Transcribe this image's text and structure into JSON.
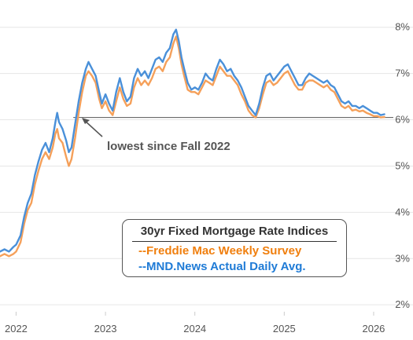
{
  "chart_data": {
    "type": "line",
    "legend_title": "30yr Fixed Mortgage Rate Indices",
    "legend_position": "bottom-right",
    "annotation": {
      "text": "lowest since Fall 2022",
      "y": 6.05
    },
    "x_ticks": [
      {
        "label": "2022",
        "x": 2022
      },
      {
        "label": "2023",
        "x": 2023
      },
      {
        "label": "2024",
        "x": 2024
      },
      {
        "label": "2025",
        "x": 2025
      },
      {
        "label": "2026",
        "x": 2026
      }
    ],
    "y_ticks": [
      {
        "label": "2%",
        "y": 2
      },
      {
        "label": "3%",
        "y": 3
      },
      {
        "label": "4%",
        "y": 4
      },
      {
        "label": "5%",
        "y": 5
      },
      {
        "label": "6%",
        "y": 6
      },
      {
        "label": "7%",
        "y": 7
      },
      {
        "label": "8%",
        "y": 8
      }
    ],
    "xlim": [
      2021.82,
      2026.15
    ],
    "ylim": [
      1.85,
      8.25
    ],
    "grid": "horizontal",
    "series": [
      {
        "name": "--MND.News Actual Daily Avg.",
        "color": "#4A90D9",
        "points": [
          [
            2021.82,
            3.15
          ],
          [
            2021.87,
            3.2
          ],
          [
            2021.92,
            3.15
          ],
          [
            2021.97,
            3.25
          ],
          [
            2022.0,
            3.3
          ],
          [
            2022.05,
            3.5
          ],
          [
            2022.09,
            3.9
          ],
          [
            2022.13,
            4.2
          ],
          [
            2022.17,
            4.4
          ],
          [
            2022.21,
            4.8
          ],
          [
            2022.25,
            5.1
          ],
          [
            2022.29,
            5.35
          ],
          [
            2022.33,
            5.5
          ],
          [
            2022.37,
            5.3
          ],
          [
            2022.41,
            5.6
          ],
          [
            2022.44,
            5.95
          ],
          [
            2022.46,
            6.15
          ],
          [
            2022.48,
            5.95
          ],
          [
            2022.52,
            5.8
          ],
          [
            2022.56,
            5.55
          ],
          [
            2022.59,
            5.3
          ],
          [
            2022.62,
            5.4
          ],
          [
            2022.66,
            5.9
          ],
          [
            2022.7,
            6.4
          ],
          [
            2022.74,
            6.8
          ],
          [
            2022.78,
            7.1
          ],
          [
            2022.81,
            7.25
          ],
          [
            2022.85,
            7.1
          ],
          [
            2022.89,
            6.95
          ],
          [
            2022.93,
            6.6
          ],
          [
            2022.96,
            6.35
          ],
          [
            2023.0,
            6.55
          ],
          [
            2023.04,
            6.35
          ],
          [
            2023.08,
            6.2
          ],
          [
            2023.12,
            6.6
          ],
          [
            2023.16,
            6.9
          ],
          [
            2023.2,
            6.6
          ],
          [
            2023.24,
            6.4
          ],
          [
            2023.28,
            6.5
          ],
          [
            2023.32,
            6.9
          ],
          [
            2023.36,
            7.1
          ],
          [
            2023.4,
            6.95
          ],
          [
            2023.44,
            7.05
          ],
          [
            2023.48,
            6.9
          ],
          [
            2023.52,
            7.1
          ],
          [
            2023.56,
            7.3
          ],
          [
            2023.6,
            7.35
          ],
          [
            2023.64,
            7.25
          ],
          [
            2023.68,
            7.45
          ],
          [
            2023.72,
            7.55
          ],
          [
            2023.76,
            7.85
          ],
          [
            2023.79,
            7.95
          ],
          [
            2023.82,
            7.7
          ],
          [
            2023.85,
            7.35
          ],
          [
            2023.88,
            7.1
          ],
          [
            2023.92,
            6.8
          ],
          [
            2023.96,
            6.65
          ],
          [
            2024.0,
            6.7
          ],
          [
            2024.04,
            6.65
          ],
          [
            2024.08,
            6.8
          ],
          [
            2024.12,
            7.0
          ],
          [
            2024.16,
            6.9
          ],
          [
            2024.2,
            6.85
          ],
          [
            2024.24,
            7.1
          ],
          [
            2024.28,
            7.3
          ],
          [
            2024.32,
            7.2
          ],
          [
            2024.36,
            7.05
          ],
          [
            2024.4,
            7.1
          ],
          [
            2024.44,
            6.95
          ],
          [
            2024.48,
            6.85
          ],
          [
            2024.52,
            6.7
          ],
          [
            2024.56,
            6.5
          ],
          [
            2024.6,
            6.3
          ],
          [
            2024.64,
            6.2
          ],
          [
            2024.68,
            6.1
          ],
          [
            2024.72,
            6.35
          ],
          [
            2024.76,
            6.7
          ],
          [
            2024.8,
            6.95
          ],
          [
            2024.84,
            7.0
          ],
          [
            2024.88,
            6.85
          ],
          [
            2024.92,
            6.95
          ],
          [
            2024.96,
            7.05
          ],
          [
            2025.0,
            7.15
          ],
          [
            2025.04,
            7.2
          ],
          [
            2025.08,
            7.05
          ],
          [
            2025.12,
            6.9
          ],
          [
            2025.16,
            6.75
          ],
          [
            2025.2,
            6.75
          ],
          [
            2025.24,
            6.9
          ],
          [
            2025.28,
            7.0
          ],
          [
            2025.32,
            6.95
          ],
          [
            2025.36,
            6.9
          ],
          [
            2025.4,
            6.85
          ],
          [
            2025.44,
            6.8
          ],
          [
            2025.48,
            6.85
          ],
          [
            2025.52,
            6.75
          ],
          [
            2025.56,
            6.7
          ],
          [
            2025.6,
            6.55
          ],
          [
            2025.64,
            6.4
          ],
          [
            2025.68,
            6.35
          ],
          [
            2025.72,
            6.4
          ],
          [
            2025.76,
            6.3
          ],
          [
            2025.8,
            6.3
          ],
          [
            2025.84,
            6.25
          ],
          [
            2025.88,
            6.3
          ],
          [
            2025.92,
            6.25
          ],
          [
            2025.96,
            6.2
          ],
          [
            2026.0,
            6.15
          ],
          [
            2026.04,
            6.15
          ],
          [
            2026.08,
            6.1
          ],
          [
            2026.12,
            6.12
          ]
        ]
      },
      {
        "name": "--Freddie Mac Weekly Survey",
        "color": "#F5A05A",
        "points": [
          [
            2021.82,
            3.05
          ],
          [
            2021.87,
            3.1
          ],
          [
            2021.92,
            3.05
          ],
          [
            2021.97,
            3.1
          ],
          [
            2022.0,
            3.15
          ],
          [
            2022.05,
            3.35
          ],
          [
            2022.09,
            3.75
          ],
          [
            2022.13,
            4.05
          ],
          [
            2022.17,
            4.2
          ],
          [
            2022.21,
            4.6
          ],
          [
            2022.25,
            4.9
          ],
          [
            2022.29,
            5.15
          ],
          [
            2022.33,
            5.3
          ],
          [
            2022.37,
            5.15
          ],
          [
            2022.41,
            5.4
          ],
          [
            2022.44,
            5.7
          ],
          [
            2022.46,
            5.8
          ],
          [
            2022.48,
            5.6
          ],
          [
            2022.52,
            5.5
          ],
          [
            2022.56,
            5.2
          ],
          [
            2022.59,
            5.0
          ],
          [
            2022.62,
            5.15
          ],
          [
            2022.66,
            5.6
          ],
          [
            2022.7,
            6.15
          ],
          [
            2022.74,
            6.6
          ],
          [
            2022.78,
            6.95
          ],
          [
            2022.81,
            7.05
          ],
          [
            2022.85,
            6.95
          ],
          [
            2022.89,
            6.8
          ],
          [
            2022.93,
            6.45
          ],
          [
            2022.96,
            6.25
          ],
          [
            2023.0,
            6.4
          ],
          [
            2023.04,
            6.2
          ],
          [
            2023.08,
            6.1
          ],
          [
            2023.12,
            6.4
          ],
          [
            2023.16,
            6.7
          ],
          [
            2023.2,
            6.45
          ],
          [
            2023.24,
            6.3
          ],
          [
            2023.28,
            6.35
          ],
          [
            2023.32,
            6.7
          ],
          [
            2023.36,
            6.9
          ],
          [
            2023.4,
            6.75
          ],
          [
            2023.44,
            6.85
          ],
          [
            2023.48,
            6.75
          ],
          [
            2023.52,
            6.9
          ],
          [
            2023.56,
            7.1
          ],
          [
            2023.6,
            7.15
          ],
          [
            2023.64,
            7.05
          ],
          [
            2023.68,
            7.25
          ],
          [
            2023.72,
            7.35
          ],
          [
            2023.76,
            7.65
          ],
          [
            2023.79,
            7.8
          ],
          [
            2023.82,
            7.55
          ],
          [
            2023.85,
            7.2
          ],
          [
            2023.88,
            6.95
          ],
          [
            2023.92,
            6.65
          ],
          [
            2023.96,
            6.6
          ],
          [
            2024.0,
            6.6
          ],
          [
            2024.04,
            6.55
          ],
          [
            2024.08,
            6.7
          ],
          [
            2024.12,
            6.85
          ],
          [
            2024.16,
            6.8
          ],
          [
            2024.2,
            6.75
          ],
          [
            2024.24,
            6.95
          ],
          [
            2024.28,
            7.15
          ],
          [
            2024.32,
            7.05
          ],
          [
            2024.36,
            6.95
          ],
          [
            2024.4,
            6.95
          ],
          [
            2024.44,
            6.85
          ],
          [
            2024.48,
            6.75
          ],
          [
            2024.52,
            6.55
          ],
          [
            2024.56,
            6.4
          ],
          [
            2024.6,
            6.2
          ],
          [
            2024.64,
            6.1
          ],
          [
            2024.68,
            6.05
          ],
          [
            2024.72,
            6.25
          ],
          [
            2024.76,
            6.55
          ],
          [
            2024.8,
            6.8
          ],
          [
            2024.84,
            6.85
          ],
          [
            2024.88,
            6.75
          ],
          [
            2024.92,
            6.8
          ],
          [
            2024.96,
            6.9
          ],
          [
            2025.0,
            7.0
          ],
          [
            2025.04,
            7.05
          ],
          [
            2025.08,
            6.9
          ],
          [
            2025.12,
            6.75
          ],
          [
            2025.16,
            6.65
          ],
          [
            2025.2,
            6.65
          ],
          [
            2025.24,
            6.8
          ],
          [
            2025.28,
            6.85
          ],
          [
            2025.32,
            6.85
          ],
          [
            2025.36,
            6.8
          ],
          [
            2025.4,
            6.75
          ],
          [
            2025.44,
            6.7
          ],
          [
            2025.48,
            6.75
          ],
          [
            2025.52,
            6.65
          ],
          [
            2025.56,
            6.6
          ],
          [
            2025.6,
            6.45
          ],
          [
            2025.64,
            6.3
          ],
          [
            2025.68,
            6.25
          ],
          [
            2025.72,
            6.3
          ],
          [
            2025.76,
            6.2
          ],
          [
            2025.8,
            6.22
          ],
          [
            2025.84,
            6.18
          ],
          [
            2025.88,
            6.2
          ],
          [
            2025.92,
            6.15
          ],
          [
            2025.96,
            6.12
          ],
          [
            2026.0,
            6.08
          ],
          [
            2026.04,
            6.08
          ],
          [
            2026.08,
            6.05
          ],
          [
            2026.12,
            6.06
          ]
        ]
      }
    ]
  }
}
